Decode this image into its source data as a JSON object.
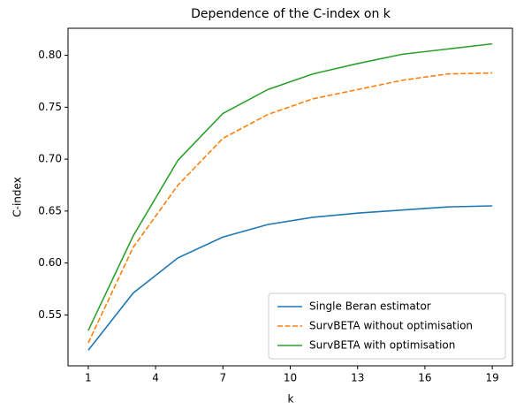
{
  "chart_data": {
    "type": "line",
    "title": "Dependence of the C-index on k",
    "xlabel": "k",
    "ylabel": "C-index",
    "x": [
      1,
      3,
      5,
      7,
      9,
      11,
      13,
      15,
      17,
      19
    ],
    "series": [
      {
        "name": "Single Beran estimator",
        "color": "#1f77b4",
        "linestyle": "solid",
        "values": [
          0.516,
          0.571,
          0.605,
          0.625,
          0.637,
          0.644,
          0.648,
          0.651,
          0.654,
          0.655
        ]
      },
      {
        "name": "SurvBETA without optimisation",
        "color": "#ff7f0e",
        "linestyle": "dashed",
        "values": [
          0.523,
          0.615,
          0.675,
          0.72,
          0.743,
          0.758,
          0.767,
          0.776,
          0.782,
          0.783
        ]
      },
      {
        "name": "SurvBETA with optimisation",
        "color": "#2ca02c",
        "linestyle": "solid",
        "values": [
          0.535,
          0.626,
          0.699,
          0.744,
          0.767,
          0.782,
          0.792,
          0.801,
          0.806,
          0.811
        ]
      }
    ],
    "xlim": [
      0.1,
      19.9
    ],
    "xticks": [
      1,
      4,
      7,
      10,
      13,
      16,
      19
    ],
    "ylim": [
      0.501,
      0.826
    ],
    "yticks": [
      0.55,
      {
        "value": 0.6,
        "label": "0.60"
      },
      0.65,
      {
        "value": 0.7,
        "label": "0.70"
      },
      0.75,
      {
        "value": 0.8,
        "label": "0.80"
      }
    ],
    "grid": false,
    "legend": "lower right"
  }
}
